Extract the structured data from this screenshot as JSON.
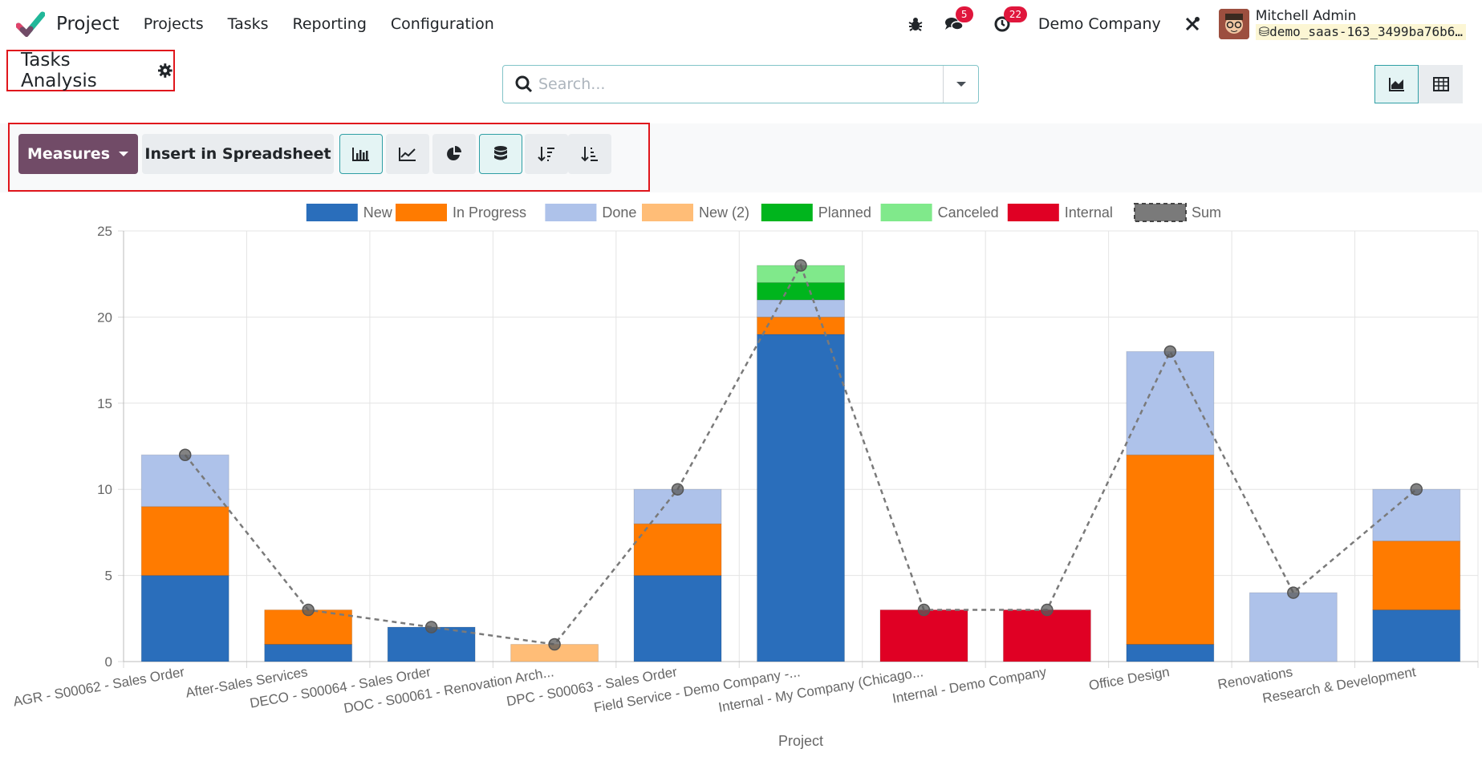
{
  "brand": {
    "name": "Project"
  },
  "nav": [
    "Projects",
    "Tasks",
    "Reporting",
    "Configuration"
  ],
  "systray": {
    "messages_count": "5",
    "activities_count": "22",
    "company": "Demo Company",
    "user_name": "Mitchell Admin",
    "db_name": "demo_saas-163_3499ba76b6…"
  },
  "page": {
    "title": "Tasks Analysis"
  },
  "search": {
    "placeholder": "Search..."
  },
  "toolbar": {
    "measures_label": "Measures",
    "insert_label": "Insert in Spreadsheet"
  },
  "icons": {
    "bug": "bug-icon",
    "chat": "chat-icon",
    "clock": "clock-icon",
    "tools": "tools-icon",
    "gear": "gear-icon",
    "search": "search-icon",
    "caret": "caret-down-icon",
    "graph_view": "area-chart-icon",
    "pivot_view": "table-icon",
    "bar": "bar-chart-icon",
    "line": "line-chart-icon",
    "pie": "pie-chart-icon",
    "stacked": "database-icon",
    "desc": "sort-desc-icon",
    "asc": "sort-asc-icon"
  },
  "colors": {
    "accent": "#714b67",
    "teal": "#2f9fa5",
    "highlight": "#e0161c"
  },
  "chart_data": {
    "type": "bar",
    "stacked": true,
    "xlabel": "Project",
    "ylabel": "",
    "ylim": [
      0,
      25
    ],
    "yticks": [
      0,
      5,
      10,
      15,
      20,
      25
    ],
    "grid": true,
    "legend_position": "top",
    "categories": [
      "AGR - S00062 - Sales Order",
      "After-Sales Services",
      "DECO - S00064 - Sales Order",
      "DOC - S00061 - Renovation Arch...",
      "DPC - S00063 - Sales Order",
      "Field Service - Demo Company -...",
      "Internal - My Company (Chicago...",
      "Internal - Demo Company",
      "Office Design",
      "Renovations",
      "Research & Development"
    ],
    "series": [
      {
        "name": "New",
        "color": "#2a6ebb",
        "values": [
          5,
          1,
          2,
          0,
          5,
          19,
          0,
          0,
          1,
          0,
          3
        ]
      },
      {
        "name": "In Progress",
        "color": "#ff7b00",
        "values": [
          4,
          2,
          0,
          0,
          3,
          1,
          0,
          0,
          11,
          0,
          4
        ]
      },
      {
        "name": "Done",
        "color": "#aec2ea",
        "values": [
          3,
          0,
          0,
          0,
          2,
          1,
          0,
          0,
          6,
          4,
          3
        ]
      },
      {
        "name": "New (2)",
        "color": "#ffbd77",
        "values": [
          0,
          0,
          0,
          1,
          0,
          0,
          0,
          0,
          0,
          0,
          0
        ]
      },
      {
        "name": "Planned",
        "color": "#00b51d",
        "values": [
          0,
          0,
          0,
          0,
          0,
          1,
          0,
          0,
          0,
          0,
          0
        ]
      },
      {
        "name": "Canceled",
        "color": "#80e98b",
        "values": [
          0,
          0,
          0,
          0,
          0,
          1,
          0,
          0,
          0,
          0,
          0
        ]
      },
      {
        "name": "Internal",
        "color": "#e00024",
        "values": [
          0,
          0,
          0,
          0,
          0,
          0,
          3,
          3,
          0,
          0,
          0
        ]
      }
    ],
    "sum": {
      "name": "Sum",
      "color": "#7a7a7a",
      "values": [
        12,
        3,
        2,
        1,
        10,
        23,
        3,
        3,
        18,
        4,
        10
      ]
    }
  }
}
